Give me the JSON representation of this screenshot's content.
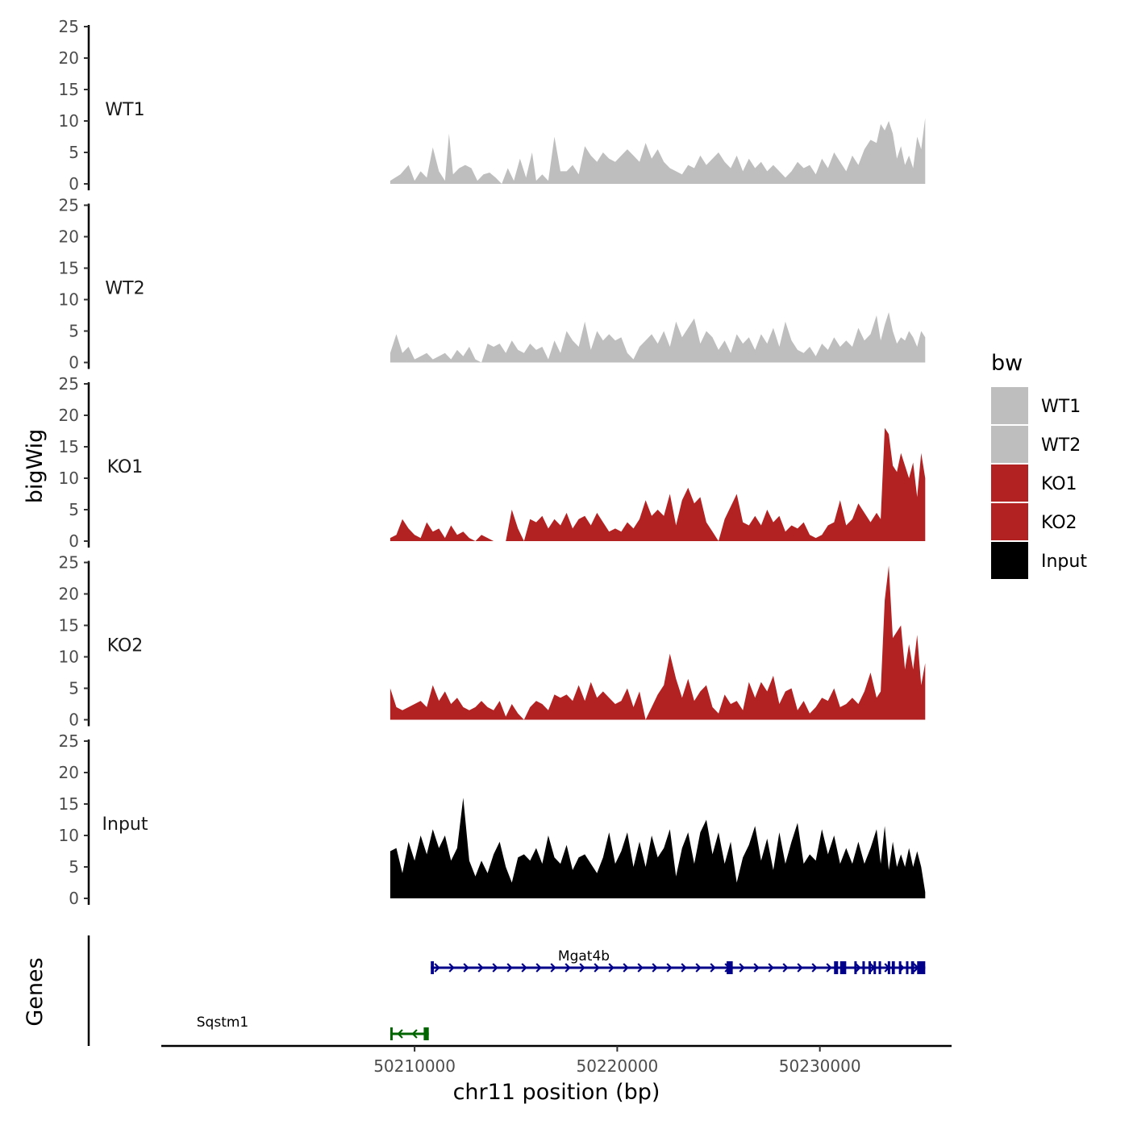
{
  "chart_data": {
    "type": "area",
    "title": "",
    "ylabel": "bigWig",
    "genes_label": "Genes",
    "xlabel": "chr11 position (bp)",
    "xlim": [
      50197500,
      50236500
    ],
    "ylim": [
      0,
      25
    ],
    "yticks": [
      "0",
      "5",
      "10",
      "15",
      "20",
      "25"
    ],
    "xticks": [
      {
        "value": 50210000,
        "label": "50210000"
      },
      {
        "value": 50220000,
        "label": "50220000"
      },
      {
        "value": 50230000,
        "label": "50230000"
      }
    ],
    "legend": {
      "title": "bw",
      "position": "right",
      "items": [
        {
          "label": "WT1",
          "color": "#bebebe"
        },
        {
          "label": "WT2",
          "color": "#bebebe"
        },
        {
          "label": "KO1",
          "color": "#b22222"
        },
        {
          "label": "KO2",
          "color": "#b22222"
        },
        {
          "label": "Input",
          "color": "#000000"
        }
      ]
    },
    "series": [
      {
        "name": "WT1",
        "color": "#bebebe",
        "x": [
          50208800,
          50209300,
          50209700,
          50210000,
          50210300,
          50210600,
          50210900,
          50211200,
          50211500,
          50211700,
          50211900,
          50212200,
          50212500,
          50212800,
          50213100,
          50213400,
          50213700,
          50214000,
          50214300,
          50214600,
          50214900,
          50215200,
          50215500,
          50215800,
          50216000,
          50216300,
          50216600,
          50216900,
          50217200,
          50217500,
          50217800,
          50218100,
          50218400,
          50218700,
          50219000,
          50219300,
          50219600,
          50219900,
          50220200,
          50220500,
          50220800,
          50221100,
          50221400,
          50221700,
          50222000,
          50222300,
          50222600,
          50222900,
          50223200,
          50223500,
          50223800,
          50224100,
          50224400,
          50224700,
          50225000,
          50225300,
          50225600,
          50225900,
          50226200,
          50226500,
          50226800,
          50227100,
          50227400,
          50227700,
          50228000,
          50228300,
          50228600,
          50228900,
          50229200,
          50229500,
          50229800,
          50230100,
          50230400,
          50230700,
          50231000,
          50231300,
          50231600,
          50231900,
          50232200,
          50232500,
          50232800,
          50233000,
          50233200,
          50233400,
          50233600,
          50233800,
          50234000,
          50234200,
          50234400,
          50234600,
          50234800,
          50235000,
          50235200
        ],
        "values": [
          0.5,
          1.5,
          3.0,
          0.5,
          2.0,
          1.0,
          5.8,
          2.0,
          0.5,
          8.0,
          1.5,
          2.5,
          3.0,
          2.5,
          0.5,
          1.5,
          1.8,
          1.0,
          0,
          2.5,
          0.5,
          4.0,
          1.0,
          5.0,
          0.5,
          1.5,
          0.5,
          7.5,
          2.0,
          2.0,
          3.0,
          1.5,
          6.0,
          4.5,
          3.5,
          5.0,
          4.0,
          3.5,
          4.5,
          5.5,
          4.5,
          3.5,
          6.5,
          4.0,
          5.5,
          3.5,
          2.5,
          2.0,
          1.5,
          3.0,
          2.5,
          4.5,
          3.0,
          4.0,
          5.0,
          3.5,
          2.5,
          4.5,
          2.0,
          4.0,
          2.5,
          3.5,
          2.0,
          3.0,
          2.0,
          1.0,
          2.0,
          3.5,
          2.5,
          3.0,
          1.5,
          4.0,
          2.5,
          5.0,
          3.5,
          2.0,
          4.5,
          3.0,
          5.5,
          7.0,
          6.5,
          9.5,
          8.5,
          10.0,
          8.0,
          4.0,
          6.0,
          3.0,
          4.5,
          2.5,
          7.5,
          5.5,
          10.5
        ]
      },
      {
        "name": "WT2",
        "color": "#bebebe",
        "x": [
          50208800,
          50209100,
          50209400,
          50209700,
          50210000,
          50210300,
          50210600,
          50210900,
          50211200,
          50211500,
          50211800,
          50212100,
          50212400,
          50212700,
          50213000,
          50213300,
          50213600,
          50213900,
          50214200,
          50214500,
          50214800,
          50215100,
          50215400,
          50215700,
          50216000,
          50216300,
          50216600,
          50216900,
          50217200,
          50217500,
          50217800,
          50218100,
          50218400,
          50218700,
          50219000,
          50219300,
          50219600,
          50219900,
          50220200,
          50220500,
          50220800,
          50221100,
          50221400,
          50221700,
          50222000,
          50222300,
          50222600,
          50222900,
          50223200,
          50223500,
          50223800,
          50224100,
          50224400,
          50224700,
          50225000,
          50225300,
          50225600,
          50225900,
          50226200,
          50226500,
          50226800,
          50227100,
          50227400,
          50227700,
          50228000,
          50228300,
          50228600,
          50228900,
          50229200,
          50229500,
          50229800,
          50230100,
          50230400,
          50230700,
          50231000,
          50231300,
          50231600,
          50231900,
          50232200,
          50232500,
          50232800,
          50233000,
          50233200,
          50233400,
          50233600,
          50233800,
          50234000,
          50234200,
          50234400,
          50234600,
          50234800,
          50235000,
          50235200
        ],
        "values": [
          1.5,
          4.5,
          1.5,
          2.5,
          0.5,
          1.0,
          1.5,
          0.5,
          1.0,
          1.5,
          0.5,
          2.0,
          1.0,
          2.5,
          0.5,
          0,
          3.0,
          2.5,
          3.0,
          1.5,
          3.5,
          2.0,
          1.5,
          3.0,
          2.0,
          2.5,
          0.5,
          3.5,
          1.5,
          5.0,
          3.5,
          2.5,
          6.5,
          2.0,
          5.0,
          3.5,
          4.5,
          3.5,
          4.0,
          1.5,
          0.5,
          2.5,
          3.5,
          4.5,
          3.0,
          5.0,
          2.5,
          6.5,
          4.0,
          5.5,
          7.0,
          3.0,
          5.0,
          4.0,
          2.0,
          3.5,
          1.5,
          4.5,
          3.0,
          4.0,
          2.0,
          4.5,
          3.0,
          5.5,
          2.5,
          6.5,
          3.5,
          2.0,
          1.5,
          2.5,
          1.0,
          3.0,
          2.0,
          4.0,
          2.5,
          3.5,
          2.5,
          5.5,
          3.5,
          4.5,
          7.5,
          3.5,
          6.0,
          8.0,
          5.0,
          3.0,
          4.0,
          3.5,
          5.0,
          4.0,
          2.5,
          5.0,
          4.0
        ]
      },
      {
        "name": "KO1",
        "color": "#b22222",
        "x": [
          50208800,
          50209100,
          50209400,
          50209700,
          50210000,
          50210300,
          50210600,
          50210900,
          50211200,
          50211500,
          50211800,
          50212100,
          50212400,
          50212700,
          50213000,
          50213300,
          50213600,
          50213900,
          50214200,
          50214500,
          50214800,
          50215100,
          50215400,
          50215700,
          50216000,
          50216300,
          50216600,
          50216900,
          50217200,
          50217500,
          50217800,
          50218100,
          50218400,
          50218700,
          50219000,
          50219300,
          50219600,
          50219900,
          50220200,
          50220500,
          50220800,
          50221100,
          50221400,
          50221700,
          50222000,
          50222300,
          50222600,
          50222900,
          50223200,
          50223500,
          50223800,
          50224100,
          50224400,
          50224700,
          50225000,
          50225300,
          50225600,
          50225900,
          50226200,
          50226500,
          50226800,
          50227100,
          50227400,
          50227700,
          50228000,
          50228300,
          50228600,
          50228900,
          50229200,
          50229500,
          50229800,
          50230100,
          50230400,
          50230700,
          50231000,
          50231300,
          50231600,
          50231900,
          50232200,
          50232500,
          50232800,
          50233000,
          50233200,
          50233400,
          50233600,
          50233800,
          50234000,
          50234200,
          50234400,
          50234600,
          50234800,
          50235000,
          50235200
        ],
        "values": [
          0.5,
          1.0,
          3.5,
          2.0,
          1.0,
          0.5,
          3.0,
          1.5,
          2.0,
          0.5,
          2.5,
          1.0,
          1.5,
          0.5,
          0,
          1.0,
          0.5,
          0,
          0,
          0,
          5.0,
          2.0,
          0,
          3.5,
          3.0,
          4.0,
          2.0,
          3.5,
          2.5,
          4.5,
          2.0,
          3.5,
          4.0,
          2.5,
          4.5,
          3.0,
          1.5,
          2.0,
          1.5,
          3.0,
          2.0,
          3.5,
          6.5,
          4.0,
          5.0,
          4.0,
          7.5,
          2.5,
          6.5,
          8.5,
          6.0,
          7.0,
          3.0,
          1.5,
          0,
          3.5,
          5.5,
          7.5,
          3.0,
          2.5,
          4.0,
          2.5,
          5.0,
          3.0,
          4.0,
          1.5,
          2.5,
          2.0,
          3.0,
          1.0,
          0.5,
          1.0,
          2.5,
          3.0,
          6.5,
          2.5,
          3.5,
          6.0,
          4.5,
          3.0,
          4.5,
          3.5,
          18.0,
          17.0,
          12.0,
          11.0,
          14.0,
          12.0,
          10.0,
          12.5,
          7.0,
          14.0,
          10.0
        ]
      },
      {
        "name": "KO2",
        "color": "#b22222",
        "x": [
          50208800,
          50209100,
          50209400,
          50209700,
          50210000,
          50210300,
          50210600,
          50210900,
          50211200,
          50211500,
          50211800,
          50212100,
          50212400,
          50212700,
          50213000,
          50213300,
          50213600,
          50213900,
          50214200,
          50214500,
          50214800,
          50215100,
          50215400,
          50215700,
          50216000,
          50216300,
          50216600,
          50216900,
          50217200,
          50217500,
          50217800,
          50218100,
          50218400,
          50218700,
          50219000,
          50219300,
          50219600,
          50219900,
          50220200,
          50220500,
          50220800,
          50221100,
          50221400,
          50221700,
          50222000,
          50222300,
          50222600,
          50222900,
          50223200,
          50223500,
          50223800,
          50224100,
          50224400,
          50224700,
          50225000,
          50225300,
          50225600,
          50225900,
          50226200,
          50226500,
          50226800,
          50227100,
          50227400,
          50227700,
          50228000,
          50228300,
          50228600,
          50228900,
          50229200,
          50229500,
          50229800,
          50230100,
          50230400,
          50230700,
          50231000,
          50231300,
          50231600,
          50231900,
          50232200,
          50232500,
          50232800,
          50233000,
          50233200,
          50233400,
          50233600,
          50233800,
          50234000,
          50234200,
          50234400,
          50234600,
          50234800,
          50235000,
          50235200
        ],
        "values": [
          5.0,
          2.0,
          1.5,
          2.0,
          2.5,
          3.0,
          2.0,
          5.5,
          3.0,
          4.5,
          2.5,
          3.5,
          2.0,
          1.5,
          2.0,
          3.0,
          2.0,
          1.5,
          3.0,
          0.5,
          2.5,
          1.0,
          0,
          2.0,
          3.0,
          2.5,
          1.5,
          4.0,
          3.5,
          4.0,
          3.0,
          5.5,
          3.0,
          6.0,
          3.5,
          4.5,
          3.5,
          2.5,
          3.0,
          5.0,
          2.0,
          4.5,
          0,
          2.0,
          4.0,
          5.5,
          10.5,
          6.5,
          3.5,
          6.5,
          3.0,
          4.5,
          5.5,
          2.0,
          1.0,
          4.0,
          2.5,
          3.0,
          1.5,
          6.0,
          3.5,
          6.0,
          4.5,
          7.0,
          2.5,
          4.5,
          5.0,
          1.5,
          3.0,
          1.0,
          2.0,
          3.5,
          3.0,
          5.0,
          2.0,
          2.5,
          3.5,
          2.5,
          4.5,
          7.5,
          3.5,
          4.5,
          19.0,
          24.5,
          13.0,
          14.0,
          15.0,
          8.0,
          12.0,
          8.0,
          13.5,
          5.5,
          9.0
        ]
      },
      {
        "name": "Input",
        "color": "#000000",
        "x": [
          50208800,
          50209100,
          50209400,
          50209700,
          50210000,
          50210300,
          50210600,
          50210900,
          50211200,
          50211500,
          50211800,
          50212100,
          50212400,
          50212700,
          50213000,
          50213300,
          50213600,
          50213900,
          50214200,
          50214500,
          50214800,
          50215100,
          50215400,
          50215700,
          50216000,
          50216300,
          50216600,
          50216900,
          50217200,
          50217500,
          50217800,
          50218100,
          50218400,
          50218700,
          50219000,
          50219300,
          50219600,
          50219900,
          50220200,
          50220500,
          50220800,
          50221100,
          50221400,
          50221700,
          50222000,
          50222300,
          50222600,
          50222900,
          50223200,
          50223500,
          50223800,
          50224100,
          50224400,
          50224700,
          50225000,
          50225300,
          50225600,
          50225900,
          50226200,
          50226500,
          50226800,
          50227100,
          50227400,
          50227700,
          50228000,
          50228300,
          50228600,
          50228900,
          50229200,
          50229500,
          50229800,
          50230100,
          50230400,
          50230700,
          50231000,
          50231300,
          50231600,
          50231900,
          50232200,
          50232500,
          50232800,
          50233000,
          50233200,
          50233400,
          50233600,
          50233800,
          50234000,
          50234200,
          50234400,
          50234600,
          50234800,
          50235000,
          50235200
        ],
        "values": [
          7.5,
          8.0,
          4.0,
          9.0,
          6.0,
          10.0,
          7.0,
          11.0,
          8.0,
          10.0,
          6.0,
          8.0,
          16.0,
          6.0,
          3.5,
          6.0,
          4.0,
          7.0,
          9.0,
          5.0,
          2.5,
          6.5,
          7.0,
          6.0,
          8.0,
          5.5,
          10.0,
          6.5,
          5.5,
          8.5,
          4.5,
          6.5,
          7.0,
          5.5,
          4.0,
          6.5,
          10.5,
          5.5,
          7.5,
          10.5,
          5.0,
          9.0,
          5.0,
          10.0,
          6.5,
          8.0,
          11.0,
          3.5,
          8.0,
          10.5,
          5.5,
          10.5,
          12.5,
          7.0,
          10.5,
          5.5,
          9.0,
          2.5,
          6.5,
          8.5,
          11.5,
          6.0,
          9.5,
          4.5,
          10.5,
          5.5,
          9.0,
          12.0,
          5.5,
          7.0,
          6.0,
          11.0,
          7.0,
          10.0,
          5.5,
          8.0,
          5.5,
          9.0,
          5.5,
          8.0,
          11.0,
          5.5,
          11.5,
          4.5,
          9.0,
          5.0,
          7.0,
          5.0,
          8.0,
          5.0,
          7.5,
          5.0,
          1.0
        ]
      }
    ],
    "genes": [
      {
        "name": "Mgat4b",
        "color": "#00008b",
        "strand": "+",
        "start": 50210800,
        "end": 50235200,
        "exons": [
          [
            50210800,
            50210950
          ],
          [
            50225400,
            50225700
          ],
          [
            50230700,
            50230900
          ],
          [
            50231000,
            50231300
          ],
          [
            50231700,
            50231800
          ],
          [
            50232100,
            50232200
          ],
          [
            50232400,
            50232500
          ],
          [
            50232650,
            50232720
          ],
          [
            50232900,
            50233000
          ],
          [
            50233350,
            50233450
          ],
          [
            50233550,
            50233700
          ],
          [
            50233900,
            50234000
          ],
          [
            50234250,
            50234350
          ],
          [
            50234500,
            50234650
          ],
          [
            50234800,
            50235200
          ]
        ]
      },
      {
        "name": "Sqstm1",
        "color": "#006400",
        "strand": "-",
        "start": 50208800,
        "end": 50210700,
        "exons": [
          [
            50208800,
            50208900
          ],
          [
            50210450,
            50210700
          ]
        ]
      }
    ]
  }
}
